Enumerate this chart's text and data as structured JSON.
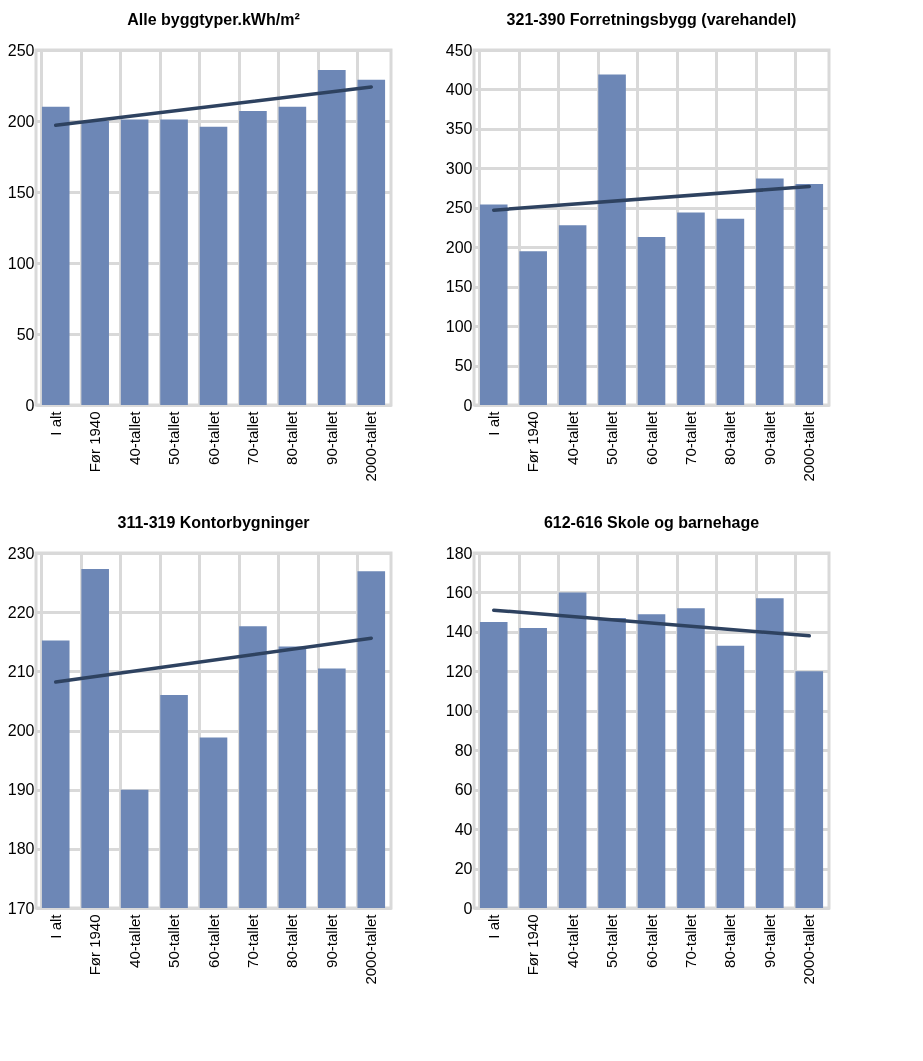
{
  "chart_data": [
    {
      "type": "bar",
      "title": "Alle byggtyper.kWh/m²",
      "categories": [
        "I alt",
        "Før 1940",
        "40-tallet",
        "50-tallet",
        "60-tallet",
        "70-tallet",
        "80-tallet",
        "90-tallet",
        "2000-tallet"
      ],
      "series": [
        {
          "color": "#6d87b6",
          "values": [
            210,
            200,
            201,
            201,
            196,
            207,
            210,
            236,
            229
          ]
        },
        {
          "type": "line",
          "color": "#2e4260",
          "values": [
            197,
            null,
            null,
            null,
            null,
            null,
            null,
            null,
            224
          ]
        }
      ],
      "ylim": [
        0,
        250
      ],
      "yticks": [
        0,
        50,
        100,
        150,
        200,
        250
      ],
      "grid": true
    },
    {
      "type": "bar",
      "title": "321-390 Forretningsbygg (varehandel)",
      "categories": [
        "I alt",
        "Før 1940",
        "40-tallet",
        "50-tallet",
        "60-tallet",
        "70-tallet",
        "80-tallet",
        "90-tallet",
        "2000-tallet"
      ],
      "series": [
        {
          "color": "#6d87b6",
          "values": [
            254,
            195,
            228,
            419,
            213,
            244,
            236,
            287,
            280
          ]
        },
        {
          "type": "line",
          "color": "#2e4260",
          "values": [
            247,
            null,
            null,
            null,
            null,
            null,
            null,
            null,
            277
          ]
        }
      ],
      "ylim": [
        0,
        450
      ],
      "yticks": [
        0,
        50,
        100,
        150,
        200,
        250,
        300,
        350,
        400,
        450
      ],
      "grid": true
    },
    {
      "type": "bar",
      "title": "311-319 Kontorbygninger",
      "categories": [
        "I alt",
        "Før 1940",
        "40-tallet",
        "50-tallet",
        "60-tallet",
        "70-tallet",
        "80-tallet",
        "90-tallet",
        "2000-tallet"
      ],
      "series": [
        {
          "color": "#6d87b6",
          "values": [
            215.2,
            227.3,
            190.0,
            206.0,
            198.8,
            217.6,
            214.2,
            210.5,
            226.9
          ]
        },
        {
          "type": "line",
          "color": "#2e4260",
          "values": [
            208.2,
            null,
            null,
            null,
            null,
            null,
            null,
            null,
            215.6
          ]
        }
      ],
      "ylim": [
        170,
        230
      ],
      "yticks": [
        170,
        180,
        190,
        200,
        210,
        220,
        230
      ],
      "grid": true
    },
    {
      "type": "bar",
      "title": "612-616 Skole og barnehage",
      "categories": [
        "I alt",
        "Før 1940",
        "40-tallet",
        "50-tallet",
        "60-tallet",
        "70-tallet",
        "80-tallet",
        "90-tallet",
        "2000-tallet"
      ],
      "series": [
        {
          "color": "#6d87b6",
          "values": [
            145,
            142,
            160,
            147,
            149,
            152,
            133,
            157,
            120
          ]
        },
        {
          "type": "line",
          "color": "#2e4260",
          "values": [
            151,
            null,
            null,
            null,
            null,
            null,
            null,
            null,
            138
          ]
        }
      ],
      "ylim": [
        0,
        180
      ],
      "yticks": [
        0,
        20,
        40,
        60,
        80,
        100,
        120,
        140,
        160,
        180
      ],
      "grid": true
    }
  ]
}
